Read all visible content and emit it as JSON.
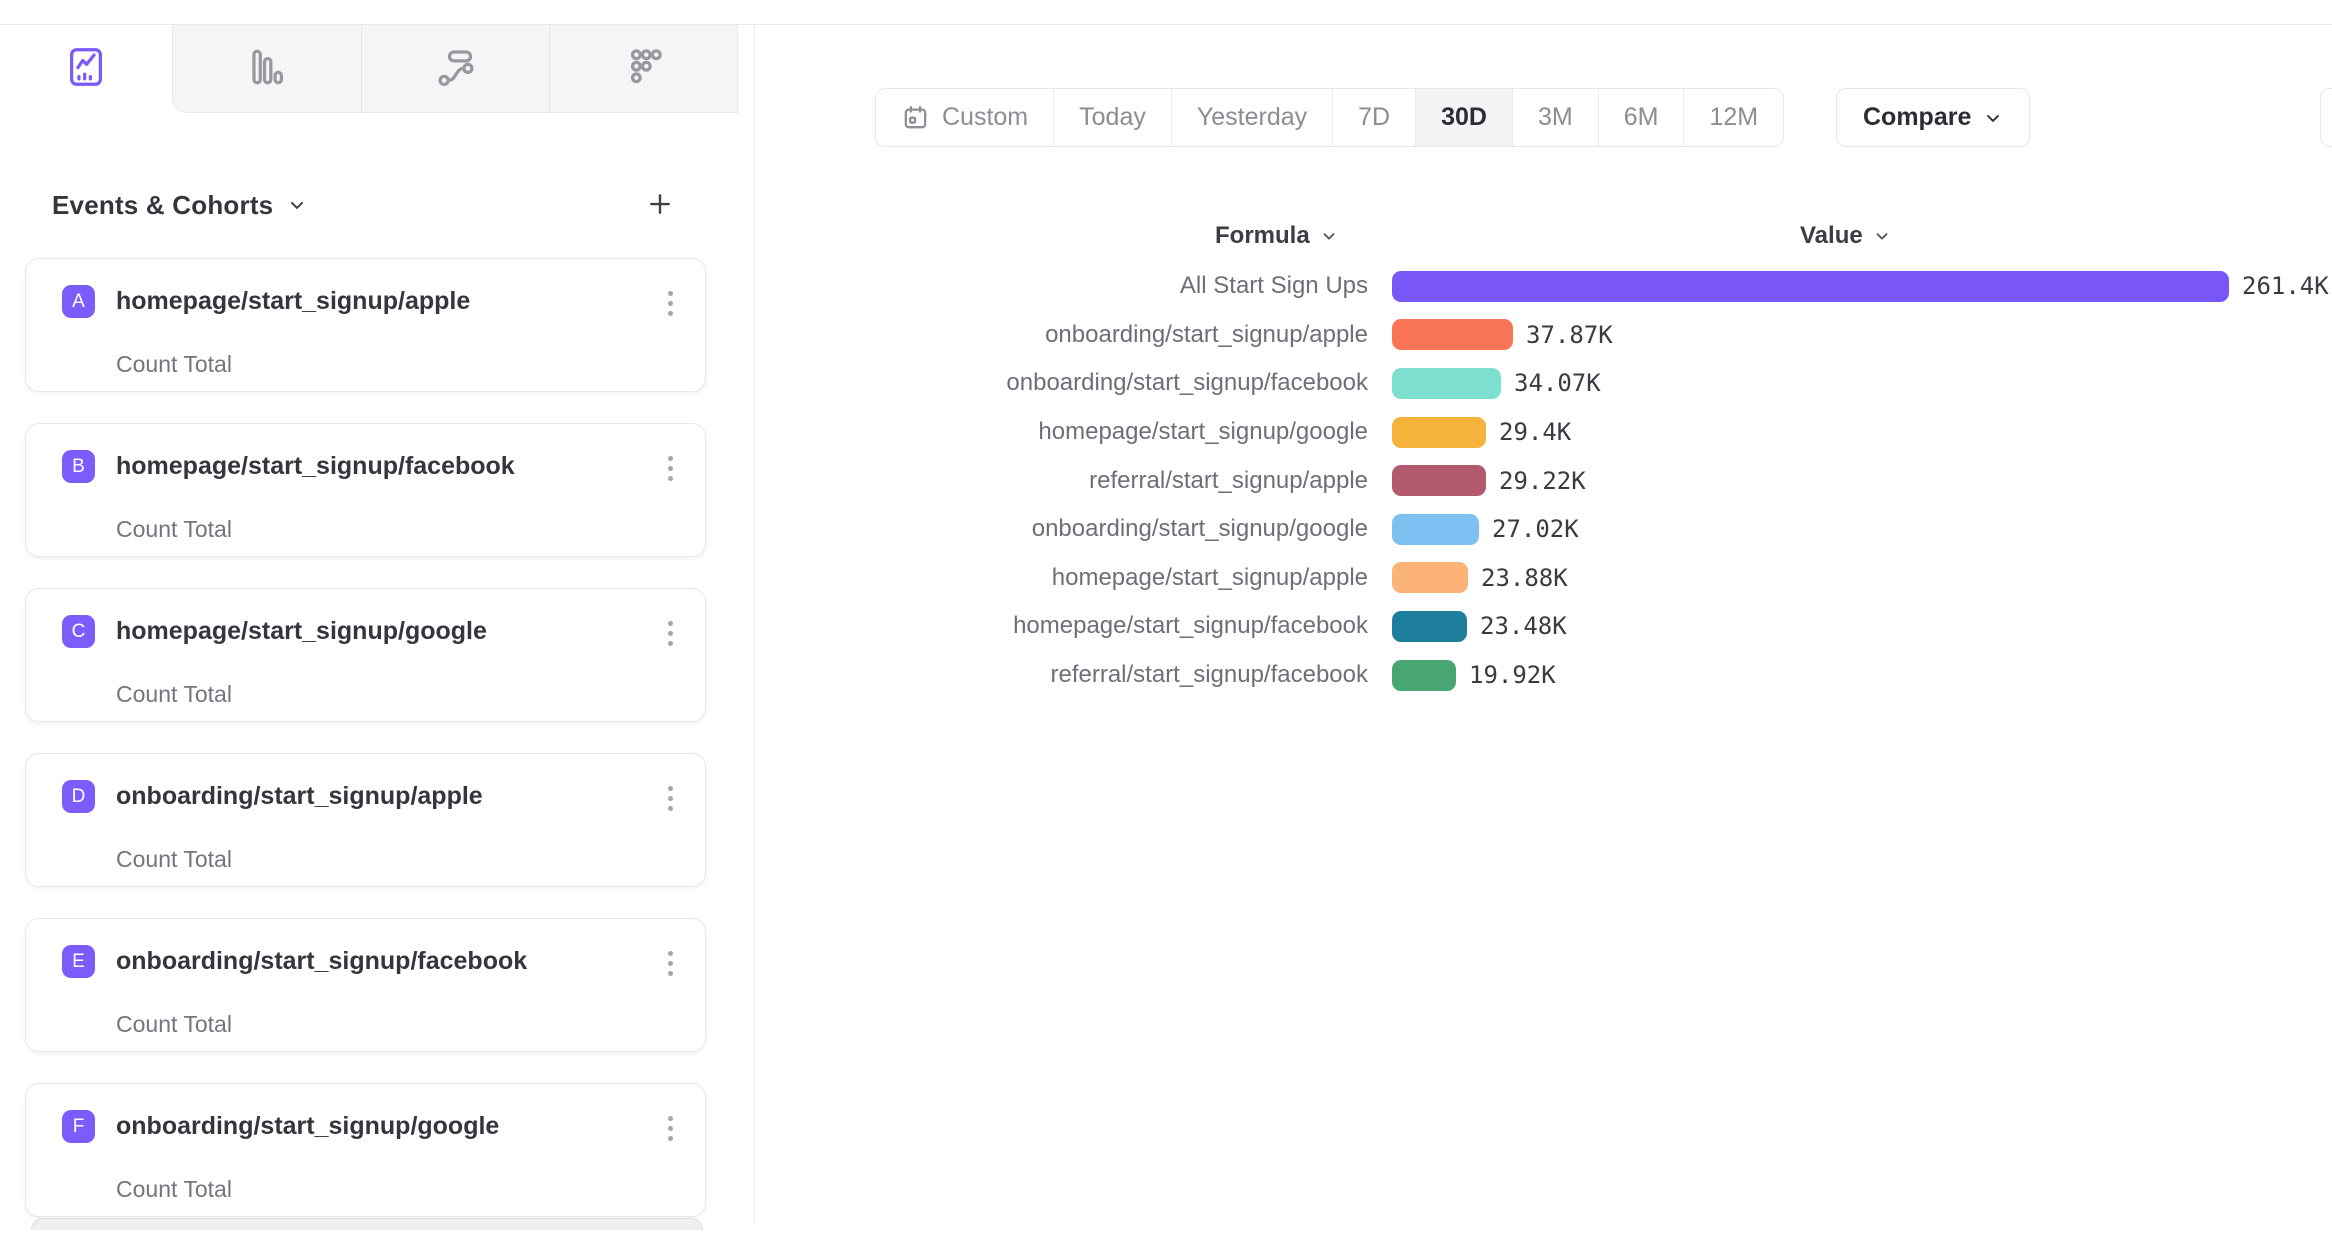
{
  "tabs": [
    {
      "name": "insights",
      "icon": "line-chart-icon",
      "active": true
    },
    {
      "name": "bar-report",
      "icon": "bar-chart-icon",
      "active": false
    },
    {
      "name": "flows",
      "icon": "flow-icon",
      "active": false
    },
    {
      "name": "retention",
      "icon": "dots-grid-icon",
      "active": false
    }
  ],
  "sidebar": {
    "header": {
      "title": "Events & Cohorts",
      "chevron_icon": "chevron-down-icon",
      "add_icon": "plus-icon"
    },
    "events": [
      {
        "letter": "A",
        "name": "homepage/start_signup/apple",
        "metric": "Count Total"
      },
      {
        "letter": "B",
        "name": "homepage/start_signup/facebook",
        "metric": "Count Total"
      },
      {
        "letter": "C",
        "name": "homepage/start_signup/google",
        "metric": "Count Total"
      },
      {
        "letter": "D",
        "name": "onboarding/start_signup/apple",
        "metric": "Count Total"
      },
      {
        "letter": "E",
        "name": "onboarding/start_signup/facebook",
        "metric": "Count Total"
      },
      {
        "letter": "F",
        "name": "onboarding/start_signup/google",
        "metric": "Count Total"
      }
    ],
    "badge_color": "#7c5cfc",
    "card_menu_icon": "kebab-menu-icon"
  },
  "toolbar": {
    "date_ranges": {
      "options": [
        "Custom",
        "Today",
        "Yesterday",
        "7D",
        "30D",
        "3M",
        "6M",
        "12M"
      ],
      "active": "30D",
      "custom_icon": "calendar-icon"
    },
    "compare_label": "Compare",
    "compare_icon": "chevron-down-icon"
  },
  "chart_data": {
    "type": "bar",
    "orientation": "horizontal",
    "formula_header": "Formula",
    "value_header": "Value",
    "max_value": 261400,
    "rows": [
      {
        "label": "All Start Sign Ups",
        "value": 261400,
        "display": "261.4K",
        "color": "#7857f6"
      },
      {
        "label": "onboarding/start_signup/apple",
        "value": 37870,
        "display": "37.87K",
        "color": "#fa7557"
      },
      {
        "label": "onboarding/start_signup/facebook",
        "value": 34070,
        "display": "34.07K",
        "color": "#7de0cf"
      },
      {
        "label": "homepage/start_signup/google",
        "value": 29400,
        "display": "29.4K",
        "color": "#f4b43c"
      },
      {
        "label": "referral/start_signup/apple",
        "value": 29220,
        "display": "29.22K",
        "color": "#b25a6e"
      },
      {
        "label": "onboarding/start_signup/google",
        "value": 27020,
        "display": "27.02K",
        "color": "#7fc0f2"
      },
      {
        "label": "homepage/start_signup/apple",
        "value": 23880,
        "display": "23.88K",
        "color": "#fbb377"
      },
      {
        "label": "homepage/start_signup/facebook",
        "value": 23480,
        "display": "23.48K",
        "color": "#1d7e9b"
      },
      {
        "label": "referral/start_signup/facebook",
        "value": 19920,
        "display": "19.92K",
        "color": "#47a671"
      }
    ],
    "accent_color": "#7b5bf7"
  }
}
